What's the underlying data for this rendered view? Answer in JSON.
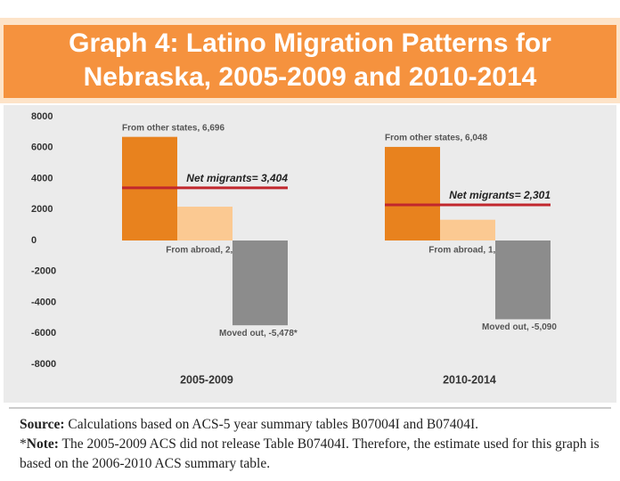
{
  "chart_data": {
    "type": "bar",
    "title": [
      "Graph 4: Latino Migration Patterns for",
      "Nebraska, 2005-2009 and 2010-2014"
    ],
    "categories": [
      "2005-2009",
      "2010-2014"
    ],
    "series": [
      {
        "color": "#e8821e",
        "values": [
          6696,
          6048
        ],
        "value_labels": [
          "From other states, 6,696",
          "From other states, 6,048"
        ]
      },
      {
        "color": "#fbc992",
        "values": [
          2186,
          1343
        ],
        "value_labels": [
          "From abroad, 2,186",
          "From abroad, 1,343"
        ]
      },
      {
        "color": "#8c8c8c",
        "values": [
          -5478,
          -5090
        ],
        "value_labels": [
          "Moved out, -5,478*",
          "Moved out, -5,090"
        ]
      }
    ],
    "net": {
      "color": "#c1272d",
      "values": [
        3404,
        2301
      ],
      "value_labels": [
        "Net migrants= 3,404",
        "Net migrants= 2,301"
      ]
    },
    "ylim": [
      -8000,
      8000
    ],
    "yticks": [
      -8000,
      -6000,
      -4000,
      -2000,
      0,
      2000,
      4000,
      6000,
      8000
    ],
    "grid": false
  },
  "footer": {
    "source_label": "Source:",
    "source_text": "Calculations based on ACS-5 year summary tables B07004I and B07404I.",
    "note_marker": "*",
    "note_label": "Note:",
    "note_text": "The 2005-2009 ACS did not release Table B07404I. Therefore, the estimate used for this graph is based on the 2006-2010 ACS summary table."
  }
}
